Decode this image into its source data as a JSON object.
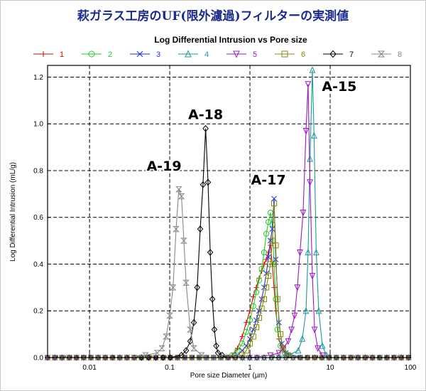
{
  "page_title": "萩ガラス工房のUF(限外濾過)フィルターの実測値",
  "chart_data": {
    "type": "line",
    "title": "Log Differential Intrusion vs Pore size",
    "xlabel": "Pore size Diameter (µm)",
    "ylabel": "Log Differential Intrusion (mL/g)",
    "xscale": "log",
    "xlim": [
      0.003,
      100
    ],
    "ylim": [
      0,
      1.25
    ],
    "x_ticks": [
      {
        "v": 0.01,
        "label": "0.01"
      },
      {
        "v": 0.1,
        "label": "0.1"
      },
      {
        "v": 1,
        "label": "1"
      },
      {
        "v": 10,
        "label": "10"
      },
      {
        "v": 100,
        "label": "100"
      }
    ],
    "y_ticks": [
      {
        "v": 0,
        "label": "0.0"
      },
      {
        "v": 0.2,
        "label": "0.2"
      },
      {
        "v": 0.4,
        "label": "0.4"
      },
      {
        "v": 0.6,
        "label": "0.6"
      },
      {
        "v": 0.8,
        "label": "0.8"
      },
      {
        "v": 1.0,
        "label": "1.0"
      },
      {
        "v": 1.2,
        "label": "1.2"
      }
    ],
    "grid": true,
    "legend_position": "top",
    "series": [
      {
        "name": "1",
        "color": "#e00000",
        "marker": "plus",
        "x": [
          0.003,
          0.01,
          0.05,
          0.1,
          0.3,
          0.5,
          0.6,
          0.7,
          0.8,
          0.9,
          1.0,
          1.1,
          1.2,
          1.3,
          1.4,
          1.5,
          1.6,
          1.7,
          1.8,
          1.9,
          2.0,
          2.1,
          2.3,
          2.6,
          3,
          5,
          10,
          30,
          100
        ],
        "y": [
          0,
          0,
          0,
          0,
          0,
          0,
          0.01,
          0.04,
          0.09,
          0.15,
          0.2,
          0.26,
          0.3,
          0.34,
          0.37,
          0.4,
          0.42,
          0.45,
          0.48,
          0.4,
          0.3,
          0.2,
          0.08,
          0.03,
          0.01,
          0,
          0,
          0,
          0
        ]
      },
      {
        "name": "2",
        "color": "#22cc22",
        "marker": "circle",
        "x": [
          0.003,
          0.01,
          0.1,
          0.4,
          0.6,
          0.7,
          0.8,
          0.9,
          1.0,
          1.1,
          1.2,
          1.3,
          1.4,
          1.5,
          1.6,
          1.7,
          1.8,
          1.9,
          2.0,
          2.1,
          2.2,
          2.4,
          2.7,
          3,
          5,
          10,
          30,
          100
        ],
        "y": [
          0,
          0,
          0,
          0,
          0.01,
          0.03,
          0.06,
          0.11,
          0.16,
          0.22,
          0.28,
          0.33,
          0.38,
          0.45,
          0.53,
          0.58,
          0.62,
          0.57,
          0.4,
          0.25,
          0.12,
          0.05,
          0.02,
          0.01,
          0,
          0,
          0,
          0
        ]
      },
      {
        "name": "3",
        "color": "#1a2ee8",
        "marker": "cross",
        "x": [
          0.003,
          0.01,
          0.1,
          0.5,
          0.7,
          0.8,
          0.9,
          1.0,
          1.1,
          1.2,
          1.3,
          1.4,
          1.5,
          1.6,
          1.7,
          1.8,
          1.9,
          2.0,
          2.1,
          2.3,
          2.5,
          2.8,
          3.2,
          5,
          10,
          30,
          100
        ],
        "y": [
          0,
          0,
          0,
          0,
          0.01,
          0.03,
          0.05,
          0.08,
          0.12,
          0.16,
          0.2,
          0.25,
          0.3,
          0.36,
          0.43,
          0.5,
          0.55,
          0.68,
          0.42,
          0.15,
          0.06,
          0.02,
          0.01,
          0,
          0,
          0,
          0
        ]
      },
      {
        "name": "4",
        "color": "#1a9a9a",
        "marker": "triangle",
        "x": [
          0.003,
          0.01,
          0.1,
          1,
          2,
          3,
          4,
          4.5,
          5,
          5.3,
          5.6,
          6,
          6.3,
          6.7,
          7.2,
          8,
          9,
          10,
          30,
          100
        ],
        "y": [
          0,
          0,
          0,
          0,
          0,
          0.01,
          0.03,
          0.08,
          0.2,
          0.45,
          0.85,
          1.23,
          0.95,
          0.45,
          0.2,
          0.05,
          0.01,
          0,
          0,
          0
        ]
      },
      {
        "name": "5",
        "color": "#9a18c8",
        "marker": "triangledown",
        "x": [
          0.003,
          0.01,
          0.1,
          1,
          1.8,
          2.3,
          2.6,
          3,
          3.3,
          3.6,
          3.9,
          4.2,
          4.6,
          5,
          5.3,
          5.6,
          6,
          6.4,
          7,
          8,
          10,
          30,
          100
        ],
        "y": [
          0,
          0,
          0,
          0,
          0.01,
          0.02,
          0.04,
          0.07,
          0.12,
          0.18,
          0.3,
          0.45,
          0.62,
          0.97,
          1.17,
          0.75,
          0.35,
          0.12,
          0.04,
          0.01,
          0,
          0,
          0
        ]
      },
      {
        "name": "6",
        "color": "#8a8a00",
        "marker": "square",
        "x": [
          0.003,
          0.01,
          0.1,
          0.6,
          0.8,
          0.9,
          1.0,
          1.1,
          1.2,
          1.3,
          1.4,
          1.5,
          1.6,
          1.7,
          1.8,
          1.9,
          2.0,
          2.1,
          2.2,
          2.4,
          2.6,
          3,
          4,
          10,
          30,
          100
        ],
        "y": [
          0,
          0,
          0,
          0,
          0.01,
          0.03,
          0.06,
          0.09,
          0.13,
          0.17,
          0.21,
          0.25,
          0.3,
          0.35,
          0.4,
          0.5,
          0.66,
          0.48,
          0.25,
          0.1,
          0.04,
          0.01,
          0,
          0,
          0,
          0
        ]
      },
      {
        "name": "7",
        "color": "#000000",
        "marker": "diamond",
        "x": [
          0.003,
          0.01,
          0.05,
          0.1,
          0.14,
          0.16,
          0.18,
          0.2,
          0.22,
          0.24,
          0.26,
          0.28,
          0.3,
          0.32,
          0.34,
          0.36,
          0.38,
          0.4,
          0.45,
          0.5,
          0.7,
          1,
          10,
          100
        ],
        "y": [
          0,
          0,
          0,
          0,
          0.01,
          0.03,
          0.07,
          0.15,
          0.3,
          0.55,
          0.74,
          0.98,
          0.75,
          0.45,
          0.25,
          0.12,
          0.05,
          0.02,
          0.01,
          0,
          0,
          0,
          0,
          0
        ]
      },
      {
        "name": "8",
        "color": "#888888",
        "marker": "hourglass",
        "x": [
          0.003,
          0.01,
          0.03,
          0.05,
          0.07,
          0.08,
          0.09,
          0.1,
          0.11,
          0.12,
          0.13,
          0.14,
          0.15,
          0.16,
          0.18,
          0.2,
          0.25,
          0.3,
          1,
          10,
          100
        ],
        "y": [
          0,
          0,
          0,
          0.01,
          0.02,
          0.04,
          0.09,
          0.18,
          0.3,
          0.55,
          0.72,
          0.69,
          0.5,
          0.32,
          0.12,
          0.04,
          0.01,
          0,
          0,
          0,
          0
        ]
      }
    ],
    "annotations": [
      {
        "text": "A-19",
        "x": 0.085,
        "y": 0.8
      },
      {
        "text": "A-18",
        "x": 0.28,
        "y": 1.02
      },
      {
        "text": "A-17",
        "x": 1.7,
        "y": 0.74
      },
      {
        "text": "A-15",
        "x": 13,
        "y": 1.14
      }
    ]
  }
}
